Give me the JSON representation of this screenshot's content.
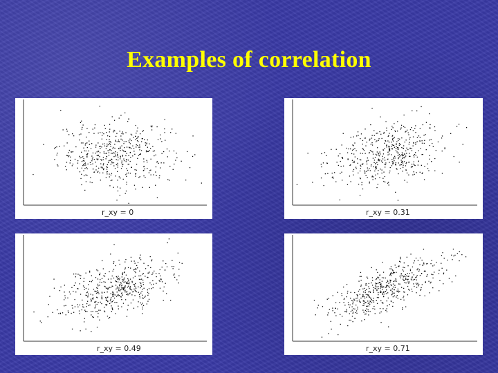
{
  "slide": {
    "title": "Examples of correlation"
  },
  "chart_data": [
    {
      "type": "scatter",
      "n_points": 500,
      "correlation": 0.0,
      "label": "r_xy = 0"
    },
    {
      "type": "scatter",
      "n_points": 500,
      "correlation": 0.31,
      "label": "r_xy = 0.31"
    },
    {
      "type": "scatter",
      "n_points": 500,
      "correlation": 0.49,
      "label": "r_xy = 0.49"
    },
    {
      "type": "scatter",
      "n_points": 500,
      "correlation": 0.71,
      "label": "r_xy = 0.71"
    }
  ],
  "colors": {
    "background": "#3a3aa6",
    "title": "#ffff00",
    "panel": "#ffffff",
    "points": "#111111"
  }
}
